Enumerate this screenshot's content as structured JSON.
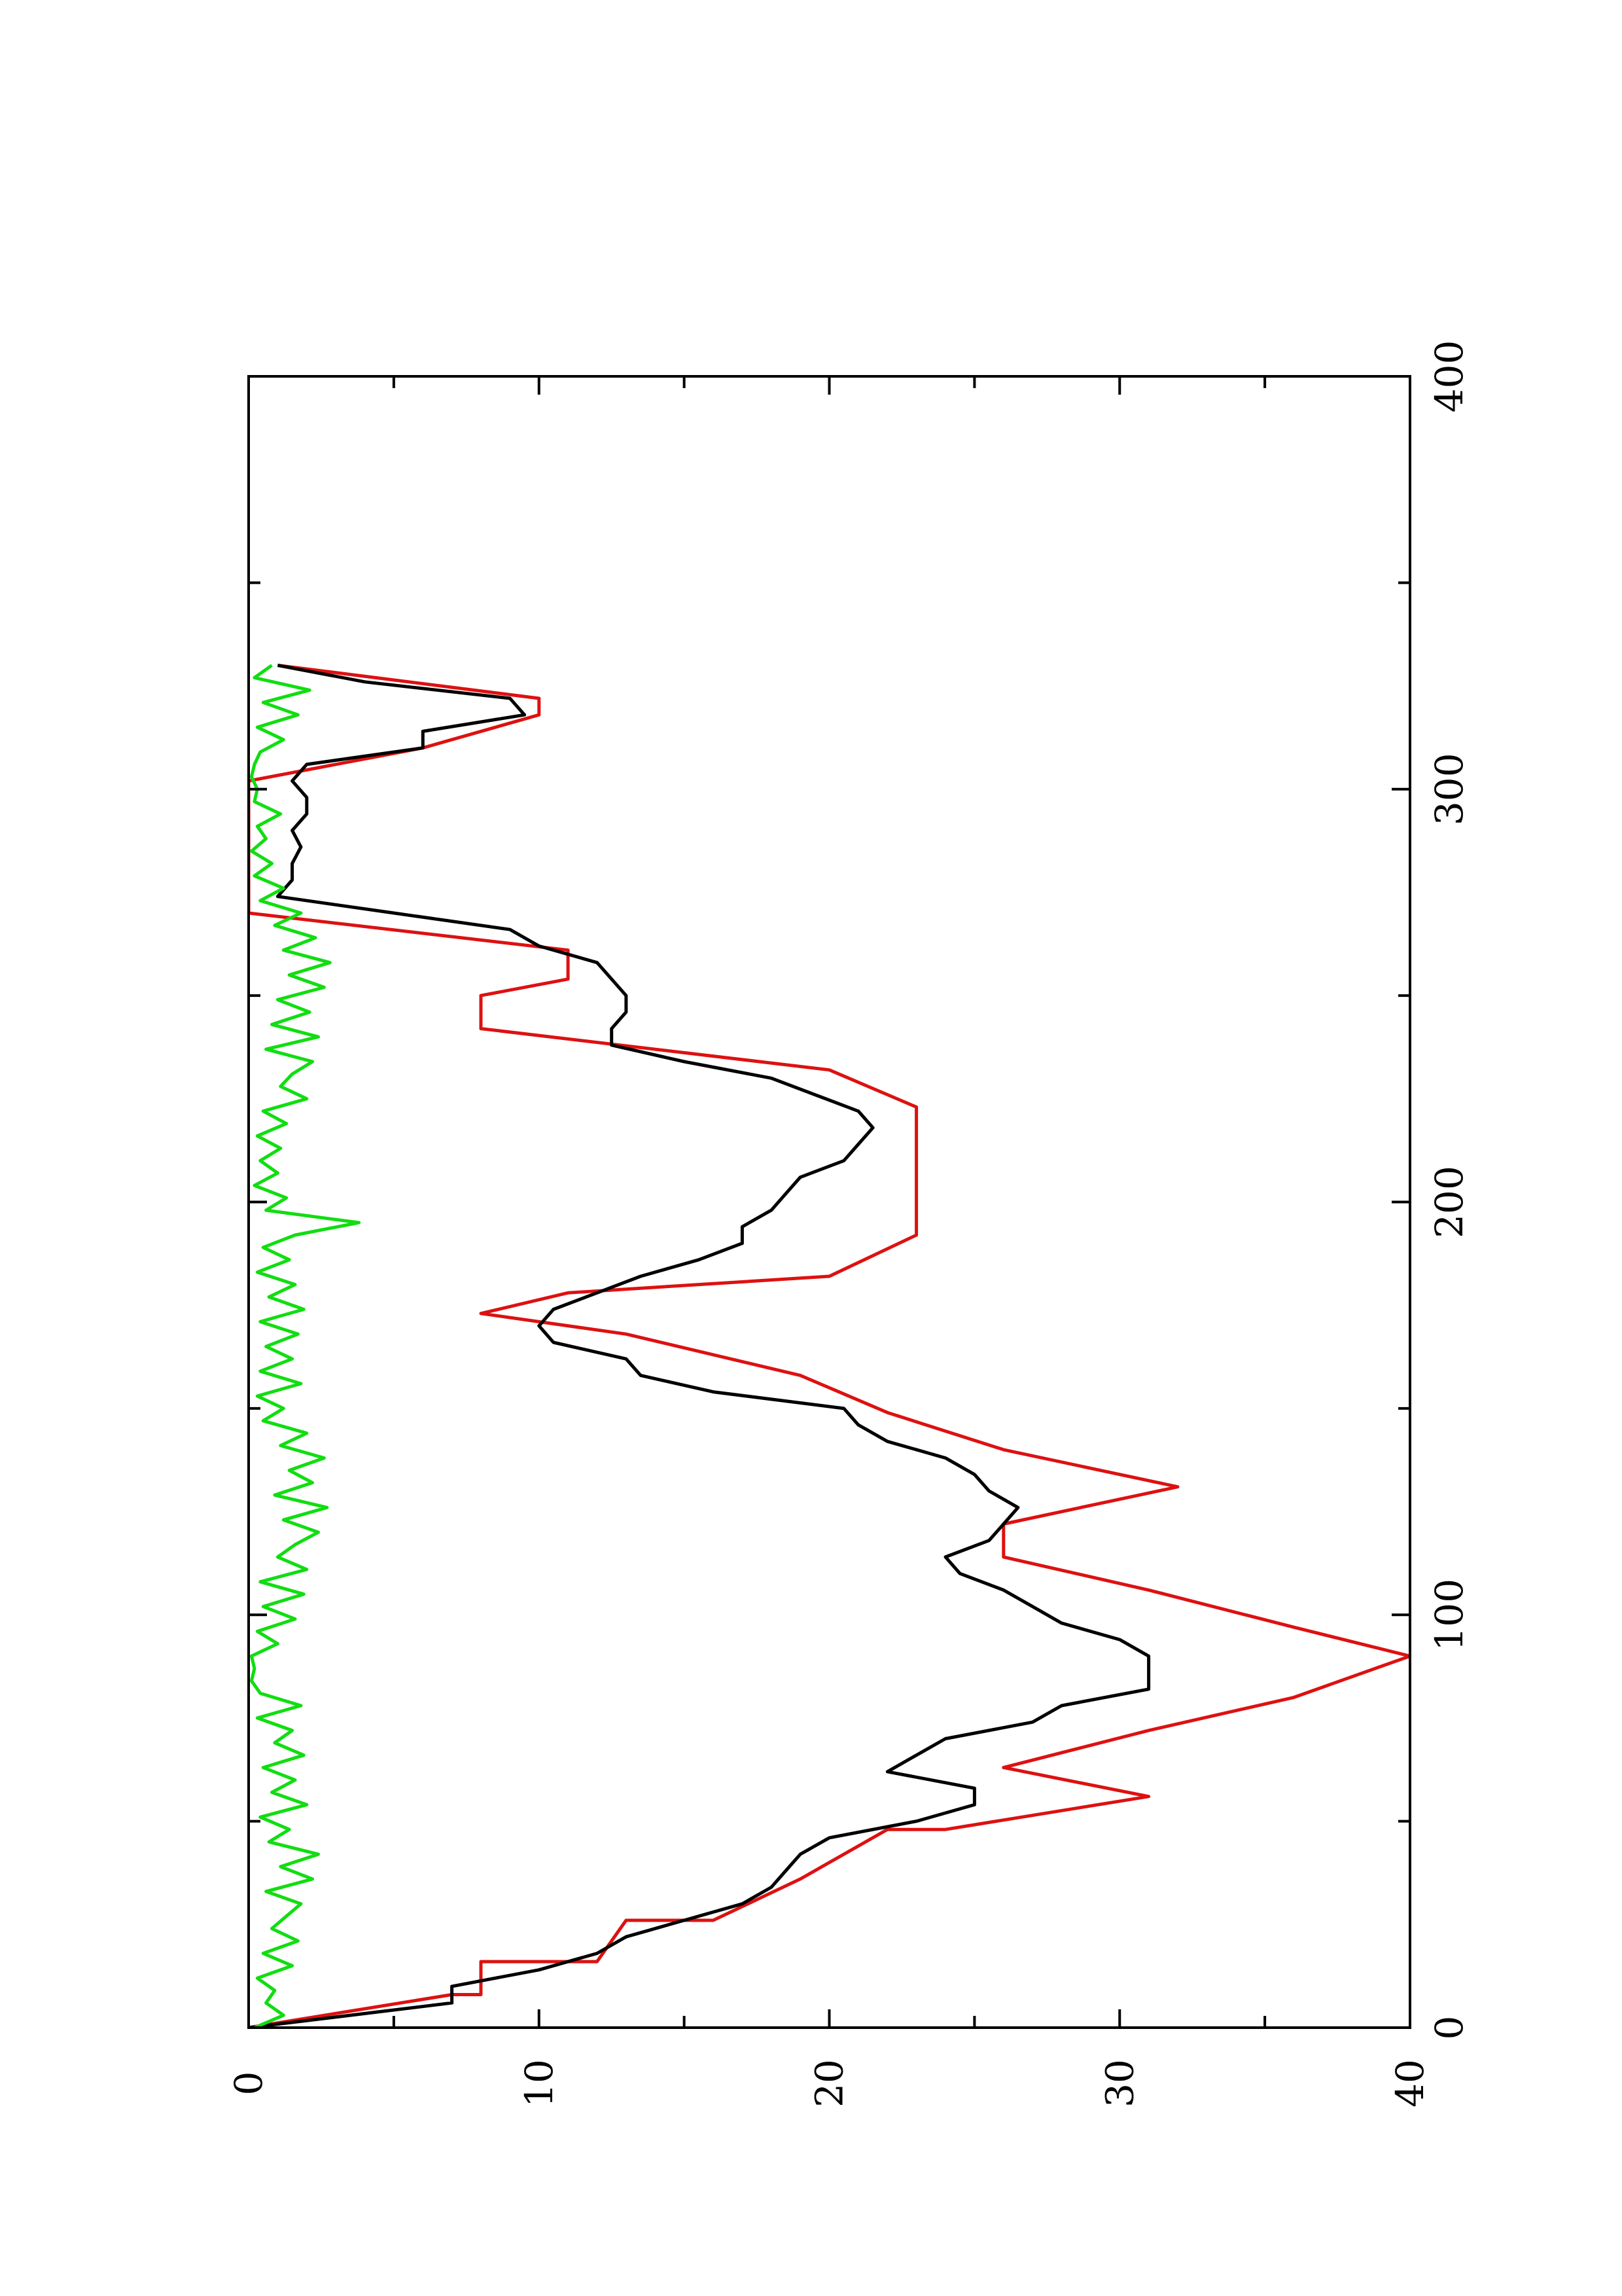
{
  "chart_data": {
    "type": "line",
    "orientation": "rotated-90-ccw",
    "title": "",
    "xlabel": "",
    "ylabel": "",
    "xlim": [
      0,
      400
    ],
    "ylim": [
      0,
      40
    ],
    "x_ticks": [
      0,
      100,
      200,
      300,
      400
    ],
    "x_minor_ticks": [
      50,
      150,
      250,
      350
    ],
    "y_ticks": [
      0,
      10,
      20,
      30,
      40
    ],
    "y_minor_ticks": [
      5,
      15,
      25,
      35
    ],
    "x_tick_labels": [
      "0",
      "100",
      "200",
      "300",
      "400"
    ],
    "y_tick_labels": [
      "0",
      "10",
      "20",
      "30",
      "40"
    ],
    "grid": false,
    "legend": "none",
    "colors": {
      "red": "#dd1111",
      "black": "#000000",
      "green": "#11dd11"
    },
    "series": [
      {
        "color": "#dd1111",
        "x": [
          0,
          8,
          8,
          16,
          16,
          26,
          26,
          36,
          36,
          48,
          48,
          56,
          56,
          63,
          63,
          72,
          72,
          80,
          80,
          90,
          90,
          97,
          97,
          106,
          106,
          114,
          114,
          122,
          122,
          131,
          131,
          140,
          140,
          149,
          149,
          158,
          158,
          168,
          168,
          173,
          173,
          178,
          178,
          182,
          182,
          192,
          192,
          223,
          223,
          232,
          232,
          242,
          242,
          250,
          250,
          254,
          254,
          261,
          261,
          270,
          270,
          278,
          278,
          302,
          302,
          310,
          310,
          318,
          318,
          322,
          322,
          330,
          330
        ],
        "y": [
          0,
          7,
          8,
          8,
          12,
          13,
          16,
          19,
          19,
          22,
          24,
          31,
          31,
          26,
          26,
          31,
          31,
          36,
          36,
          40,
          40,
          36,
          36,
          31,
          31,
          26,
          26,
          26,
          26,
          32,
          32,
          26,
          26,
          22,
          22,
          19,
          19,
          13,
          13,
          8,
          8,
          11,
          11,
          20,
          20,
          23,
          23,
          23,
          23,
          20,
          20,
          8,
          8,
          8,
          8,
          11,
          11,
          11,
          11,
          0,
          0,
          0,
          0,
          0,
          0,
          6,
          6,
          10,
          10,
          10,
          10,
          1,
          1
        ]
      },
      {
        "color": "#000000",
        "x": [
          0,
          6,
          10,
          14,
          18,
          22,
          26,
          30,
          34,
          38,
          42,
          46,
          50,
          54,
          58,
          62,
          66,
          70,
          74,
          78,
          82,
          86,
          90,
          94,
          98,
          102,
          106,
          110,
          114,
          118,
          122,
          126,
          130,
          134,
          138,
          142,
          146,
          150,
          154,
          158,
          162,
          166,
          170,
          174,
          178,
          182,
          186,
          190,
          194,
          198,
          202,
          206,
          210,
          214,
          218,
          222,
          226,
          230,
          234,
          238,
          242,
          246,
          250,
          254,
          258,
          262,
          266,
          270,
          274,
          278,
          282,
          286,
          290,
          294,
          298,
          302,
          306,
          310,
          314,
          318,
          322,
          326,
          330
        ],
        "y": [
          0,
          7,
          7,
          10,
          12,
          13,
          15,
          17,
          18,
          18.5,
          19,
          20,
          23,
          25,
          25,
          22,
          23,
          24,
          27,
          28,
          31,
          31,
          31,
          30,
          28,
          27,
          26,
          24.5,
          24,
          25.5,
          26,
          26.5,
          25.5,
          25,
          24,
          22,
          21,
          20.5,
          16,
          13.5,
          13,
          10.5,
          10,
          10.5,
          12,
          13.5,
          15.5,
          17,
          17,
          18,
          18.5,
          19,
          20.5,
          21,
          21.5,
          21,
          19.5,
          18,
          15,
          12.5,
          12.5,
          13,
          13,
          12.5,
          12,
          10,
          9,
          5,
          1,
          1.5,
          1.5,
          1.8,
          1.5,
          2,
          2,
          1.5,
          2,
          6,
          6,
          9.5,
          9,
          4,
          1
        ]
      },
      {
        "color": "#11dd11",
        "x": [
          0,
          3,
          6,
          9,
          12,
          15,
          18,
          21,
          24,
          27,
          30,
          33,
          36,
          39,
          42,
          45,
          48,
          51,
          54,
          57,
          60,
          63,
          66,
          69,
          72,
          75,
          78,
          81,
          84,
          87,
          90,
          93,
          96,
          99,
          102,
          105,
          108,
          111,
          114,
          117,
          120,
          123,
          126,
          129,
          132,
          135,
          138,
          141,
          144,
          147,
          150,
          153,
          156,
          159,
          162,
          165,
          168,
          171,
          174,
          177,
          180,
          183,
          186,
          189,
          192,
          195,
          198,
          201,
          204,
          207,
          210,
          213,
          216,
          219,
          222,
          225,
          228,
          231,
          234,
          237,
          240,
          243,
          246,
          249,
          252,
          255,
          258,
          261,
          264,
          267,
          270,
          273,
          276,
          279,
          282,
          285,
          288,
          291,
          294,
          297,
          300,
          303,
          306,
          309,
          312,
          315,
          318,
          321,
          324,
          327,
          330
        ],
        "y": [
          0.2,
          1.2,
          0.6,
          0.9,
          0.3,
          1.5,
          0.5,
          1.7,
          0.8,
          1.3,
          1.8,
          0.6,
          2.2,
          1.1,
          2.4,
          0.7,
          1.4,
          0.4,
          2.0,
          0.8,
          1.6,
          0.5,
          1.9,
          0.9,
          1.5,
          0.3,
          1.8,
          0.4,
          0.1,
          0.2,
          0.1,
          1.0,
          0.3,
          1.6,
          0.5,
          1.9,
          0.4,
          2.0,
          1.0,
          1.6,
          2.4,
          1.2,
          2.7,
          0.9,
          2.2,
          1.4,
          2.6,
          1.1,
          2.0,
          0.5,
          1.2,
          0.3,
          1.8,
          0.4,
          1.5,
          0.6,
          1.7,
          0.4,
          1.9,
          0.7,
          1.6,
          0.3,
          1.4,
          0.5,
          1.6,
          3.8,
          0.6,
          1.3,
          0.2,
          1.0,
          0.4,
          1.1,
          0.3,
          1.3,
          0.5,
          2.0,
          1.1,
          1.5,
          2.2,
          0.6,
          2.4,
          0.8,
          2.1,
          1.0,
          2.6,
          1.4,
          2.8,
          1.2,
          2.3,
          0.9,
          1.8,
          0.4,
          1.2,
          0.2,
          0.8,
          0.1,
          0.6,
          0.3,
          1.1,
          0.2,
          0.3,
          0.1,
          0.2,
          0.4,
          1.2,
          0.3,
          1.7,
          0.5,
          2.1,
          0.2,
          0.8
        ]
      }
    ]
  }
}
